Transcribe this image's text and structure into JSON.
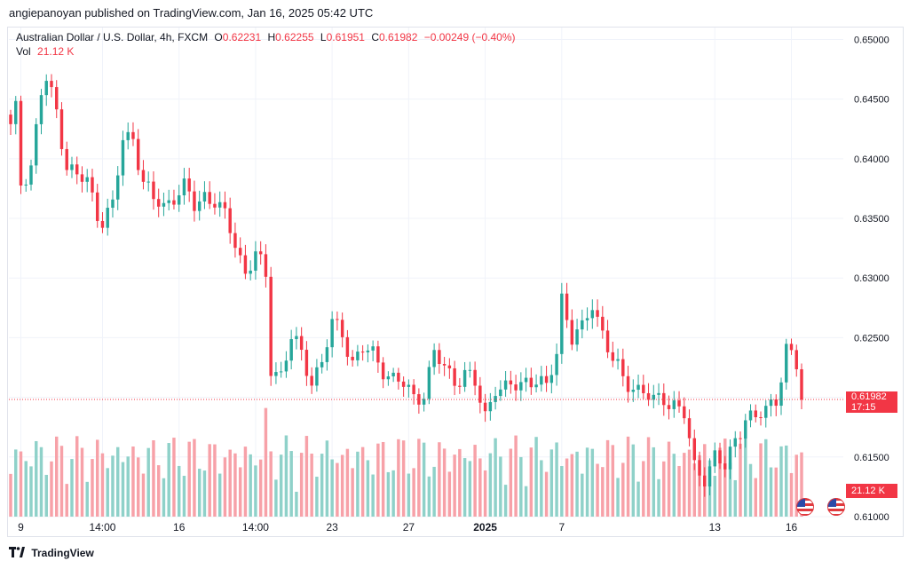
{
  "publisher": "angiepanoyan published on TradingView.com, Jan 16, 2025 05:42 UTC",
  "legend": {
    "symbol": "Australian Dollar / U.S. Dollar, 4h, FXCM",
    "o_label": "O",
    "o_value": "0.62231",
    "h_label": "H",
    "h_value": "0.62255",
    "l_label": "L",
    "l_value": "0.61951",
    "c_label": "C",
    "c_value": "0.61982",
    "change": "−0.00249 (−0.40%)",
    "vol_label": "Vol",
    "vol_value": "21.12 K"
  },
  "last_price": "0.61982",
  "countdown": "17:15",
  "last_volume": "21.12 K",
  "footer_brand": "TradingView",
  "colors": {
    "up": "#26a69a",
    "down": "#f23645",
    "vol_up": "#8fd1c9",
    "vol_down": "#f7a1a8",
    "grid": "#f0f3fa",
    "axis_text": "#131722"
  },
  "chart_data": {
    "type": "candlestick",
    "title": "Australian Dollar / U.S. Dollar, 4h, FXCM",
    "ylim": [
      0.61,
      0.651
    ],
    "y_ticks": [
      "0.65000",
      "0.64500",
      "0.64000",
      "0.63500",
      "0.63000",
      "0.62500",
      "0.62000",
      "0.61500",
      "0.61000"
    ],
    "x_ticks": [
      {
        "label": "9",
        "index": 2
      },
      {
        "label": "14:00",
        "index": 18
      },
      {
        "label": "16",
        "index": 33
      },
      {
        "label": "14:00",
        "index": 48
      },
      {
        "label": "23",
        "index": 63
      },
      {
        "label": "27",
        "index": 78
      },
      {
        "label": "2025",
        "index": 93
      },
      {
        "label": "7",
        "index": 108
      },
      {
        "label": "13",
        "index": 138
      },
      {
        "label": "16",
        "index": 153
      }
    ],
    "anchors": [
      [
        0,
        0.6425
      ],
      [
        1,
        0.644
      ],
      [
        2,
        0.638
      ],
      [
        4,
        0.6395
      ],
      [
        6,
        0.6455
      ],
      [
        7,
        0.6465
      ],
      [
        9,
        0.644
      ],
      [
        11,
        0.6395
      ],
      [
        13,
        0.6385
      ],
      [
        15,
        0.638
      ],
      [
        17,
        0.6355
      ],
      [
        18,
        0.635
      ],
      [
        20,
        0.636
      ],
      [
        22,
        0.6415
      ],
      [
        24,
        0.642
      ],
      [
        26,
        0.638
      ],
      [
        28,
        0.6365
      ],
      [
        30,
        0.636
      ],
      [
        32,
        0.637
      ],
      [
        34,
        0.6375
      ],
      [
        36,
        0.636
      ],
      [
        38,
        0.637
      ],
      [
        40,
        0.6365
      ],
      [
        42,
        0.635
      ],
      [
        44,
        0.633
      ],
      [
        46,
        0.6305
      ],
      [
        48,
        0.632
      ],
      [
        50,
        0.63
      ],
      [
        51,
        0.6225
      ],
      [
        53,
        0.622
      ],
      [
        55,
        0.625
      ],
      [
        57,
        0.6235
      ],
      [
        59,
        0.6215
      ],
      [
        61,
        0.623
      ],
      [
        63,
        0.626
      ],
      [
        65,
        0.6255
      ],
      [
        67,
        0.623
      ],
      [
        69,
        0.624
      ],
      [
        71,
        0.6235
      ],
      [
        73,
        0.6225
      ],
      [
        75,
        0.6215
      ],
      [
        77,
        0.621
      ],
      [
        79,
        0.62
      ],
      [
        81,
        0.6205
      ],
      [
        83,
        0.6235
      ],
      [
        85,
        0.6225
      ],
      [
        87,
        0.6215
      ],
      [
        89,
        0.622
      ],
      [
        91,
        0.621
      ],
      [
        93,
        0.6185
      ],
      [
        95,
        0.621
      ],
      [
        97,
        0.6205
      ],
      [
        99,
        0.621
      ],
      [
        101,
        0.6215
      ],
      [
        103,
        0.6215
      ],
      [
        105,
        0.6205
      ],
      [
        107,
        0.624
      ],
      [
        108,
        0.6285
      ],
      [
        110,
        0.625
      ],
      [
        112,
        0.6255
      ],
      [
        114,
        0.628
      ],
      [
        116,
        0.6255
      ],
      [
        118,
        0.623
      ],
      [
        120,
        0.6215
      ],
      [
        122,
        0.621
      ],
      [
        124,
        0.6205
      ],
      [
        126,
        0.6195
      ],
      [
        128,
        0.62
      ],
      [
        130,
        0.6195
      ],
      [
        132,
        0.6185
      ],
      [
        134,
        0.614
      ],
      [
        136,
        0.6135
      ],
      [
        138,
        0.615
      ],
      [
        140,
        0.614
      ],
      [
        142,
        0.6165
      ],
      [
        144,
        0.6185
      ],
      [
        146,
        0.618
      ],
      [
        148,
        0.619
      ],
      [
        150,
        0.62
      ],
      [
        152,
        0.624
      ],
      [
        154,
        0.6225
      ],
      [
        155,
        0.6198
      ]
    ],
    "candle_count": 156,
    "volume_ylim": [
      0,
      12
    ]
  }
}
